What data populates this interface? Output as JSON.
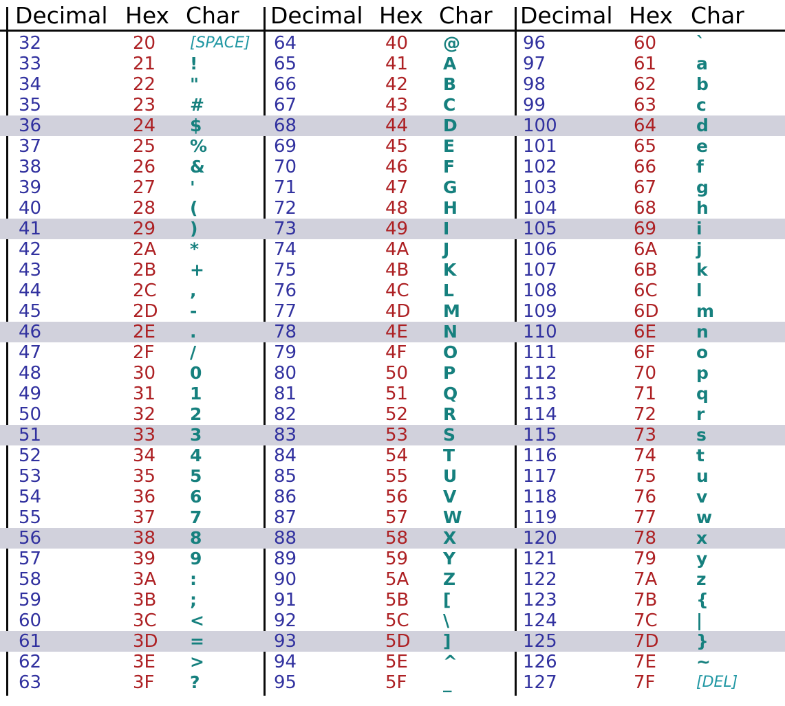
{
  "colors": {
    "decimal_text": "#31319f",
    "hex_text": "#ad2023",
    "char_text": "#16807e",
    "special_char_text": "#2097a3",
    "highlight_row_bg": "#d1d1dc",
    "line": "#0a0a0a",
    "header_text": "#000000",
    "background": "#ffffff"
  },
  "header": {
    "decimal": "Decimal",
    "hex": "Hex",
    "char": "Char"
  },
  "chart_data": {
    "type": "table",
    "columns": [
      "Decimal",
      "Hex",
      "Char"
    ],
    "layout_hint": "three side-by-side column groups separated by vertical rules; every fifth row shaded",
    "highlighted_decimals": [
      36,
      41,
      46,
      51,
      56,
      61,
      68,
      73,
      78,
      83,
      88,
      93,
      100,
      105,
      110,
      115,
      120,
      125
    ],
    "groups": [
      {
        "rows": [
          [
            "32",
            "20",
            "[SPACE]"
          ],
          [
            "33",
            "21",
            "!"
          ],
          [
            "34",
            "22",
            "\""
          ],
          [
            "35",
            "23",
            "#"
          ],
          [
            "36",
            "24",
            "$"
          ],
          [
            "37",
            "25",
            "%"
          ],
          [
            "38",
            "26",
            "&"
          ],
          [
            "39",
            "27",
            "'"
          ],
          [
            "40",
            "28",
            "("
          ],
          [
            "41",
            "29",
            ")"
          ],
          [
            "42",
            "2A",
            "*"
          ],
          [
            "43",
            "2B",
            "+"
          ],
          [
            "44",
            "2C",
            ","
          ],
          [
            "45",
            "2D",
            "-"
          ],
          [
            "46",
            "2E",
            "."
          ],
          [
            "47",
            "2F",
            "/"
          ],
          [
            "48",
            "30",
            "0"
          ],
          [
            "49",
            "31",
            "1"
          ],
          [
            "50",
            "32",
            "2"
          ],
          [
            "51",
            "33",
            "3"
          ],
          [
            "52",
            "34",
            "4"
          ],
          [
            "53",
            "35",
            "5"
          ],
          [
            "54",
            "36",
            "6"
          ],
          [
            "55",
            "37",
            "7"
          ],
          [
            "56",
            "38",
            "8"
          ],
          [
            "57",
            "39",
            "9"
          ],
          [
            "58",
            "3A",
            ":"
          ],
          [
            "59",
            "3B",
            ";"
          ],
          [
            "60",
            "3C",
            "<"
          ],
          [
            "61",
            "3D",
            "="
          ],
          [
            "62",
            "3E",
            ">"
          ],
          [
            "63",
            "3F",
            "?"
          ]
        ]
      },
      {
        "rows": [
          [
            "64",
            "40",
            "@"
          ],
          [
            "65",
            "41",
            "A"
          ],
          [
            "66",
            "42",
            "B"
          ],
          [
            "67",
            "43",
            "C"
          ],
          [
            "68",
            "44",
            "D"
          ],
          [
            "69",
            "45",
            "E"
          ],
          [
            "70",
            "46",
            "F"
          ],
          [
            "71",
            "47",
            "G"
          ],
          [
            "72",
            "48",
            "H"
          ],
          [
            "73",
            "49",
            "I"
          ],
          [
            "74",
            "4A",
            "J"
          ],
          [
            "75",
            "4B",
            "K"
          ],
          [
            "76",
            "4C",
            "L"
          ],
          [
            "77",
            "4D",
            "M"
          ],
          [
            "78",
            "4E",
            "N"
          ],
          [
            "79",
            "4F",
            "O"
          ],
          [
            "80",
            "50",
            "P"
          ],
          [
            "81",
            "51",
            "Q"
          ],
          [
            "82",
            "52",
            "R"
          ],
          [
            "83",
            "53",
            "S"
          ],
          [
            "84",
            "54",
            "T"
          ],
          [
            "85",
            "55",
            "U"
          ],
          [
            "86",
            "56",
            "V"
          ],
          [
            "87",
            "57",
            "W"
          ],
          [
            "88",
            "58",
            "X"
          ],
          [
            "89",
            "59",
            "Y"
          ],
          [
            "90",
            "5A",
            "Z"
          ],
          [
            "91",
            "5B",
            "["
          ],
          [
            "92",
            "5C",
            "\\"
          ],
          [
            "93",
            "5D",
            "]"
          ],
          [
            "94",
            "5E",
            "^"
          ],
          [
            "95",
            "5F",
            "_"
          ]
        ]
      },
      {
        "rows": [
          [
            "96",
            "60",
            "`"
          ],
          [
            "97",
            "61",
            "a"
          ],
          [
            "98",
            "62",
            "b"
          ],
          [
            "99",
            "63",
            "c"
          ],
          [
            "100",
            "64",
            "d"
          ],
          [
            "101",
            "65",
            "e"
          ],
          [
            "102",
            "66",
            "f"
          ],
          [
            "103",
            "67",
            "g"
          ],
          [
            "104",
            "68",
            "h"
          ],
          [
            "105",
            "69",
            "i"
          ],
          [
            "106",
            "6A",
            "j"
          ],
          [
            "107",
            "6B",
            "k"
          ],
          [
            "108",
            "6C",
            "l"
          ],
          [
            "109",
            "6D",
            "m"
          ],
          [
            "110",
            "6E",
            "n"
          ],
          [
            "111",
            "6F",
            "o"
          ],
          [
            "112",
            "70",
            "p"
          ],
          [
            "113",
            "71",
            "q"
          ],
          [
            "114",
            "72",
            "r"
          ],
          [
            "115",
            "73",
            "s"
          ],
          [
            "116",
            "74",
            "t"
          ],
          [
            "117",
            "75",
            "u"
          ],
          [
            "118",
            "76",
            "v"
          ],
          [
            "119",
            "77",
            "w"
          ],
          [
            "120",
            "78",
            "x"
          ],
          [
            "121",
            "79",
            "y"
          ],
          [
            "122",
            "7A",
            "z"
          ],
          [
            "123",
            "7B",
            "{"
          ],
          [
            "124",
            "7C",
            "|"
          ],
          [
            "125",
            "7D",
            "}"
          ],
          [
            "126",
            "7E",
            "~"
          ],
          [
            "127",
            "7F",
            "[DEL]"
          ]
        ]
      }
    ]
  }
}
